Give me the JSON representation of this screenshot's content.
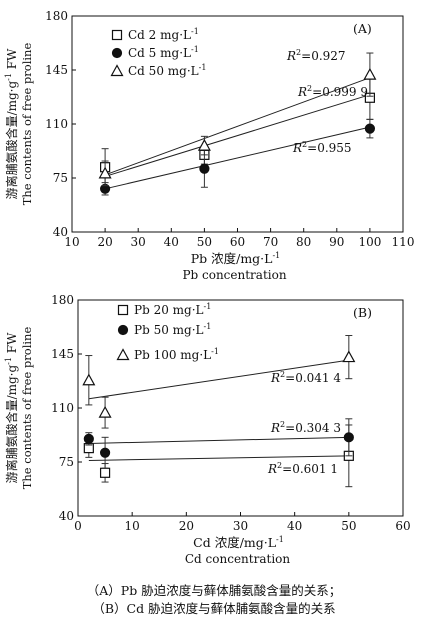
{
  "chart_data": [
    {
      "type": "scatter",
      "panel_label": "(A)",
      "xlabel_cn": "Pb 浓度/mg·L",
      "xlabel_sup": "-1",
      "xlabel_en": "Pb concentration",
      "ylabel_cn": "游离脯氨酸含量/mg·g",
      "ylabel_sup": "-1",
      "ylabel_tail": " FW",
      "ylabel_en": "The contents of free proline",
      "xlim": [
        10,
        110
      ],
      "ylim": [
        40,
        180
      ],
      "xticks": [
        10,
        20,
        30,
        40,
        50,
        60,
        70,
        80,
        90,
        100,
        110
      ],
      "yticks": [
        40,
        75,
        110,
        145,
        180
      ],
      "legend_position": "top-left",
      "series": [
        {
          "name": "Cd 2 mg·L",
          "name_sup": "-1",
          "marker": "square",
          "x": [
            20,
            50,
            100
          ],
          "y": [
            82,
            90,
            127
          ],
          "err": [
            12,
            6,
            14
          ],
          "fit": [
            76,
            129
          ],
          "r2_label": "R",
          "r2_value": "=0.927"
        },
        {
          "name": "Cd 5 mg·L",
          "name_sup": "-1",
          "marker": "circle",
          "x": [
            20,
            50,
            100
          ],
          "y": [
            68,
            81,
            107
          ],
          "err": [
            4,
            12,
            6
          ],
          "fit": [
            68,
            108
          ],
          "r2_label": "R",
          "r2_value": "=0.999 9"
        },
        {
          "name": "Cd 50 mg·L",
          "name_sup": "-1",
          "marker": "triangle",
          "x": [
            20,
            50,
            100
          ],
          "y": [
            78,
            96,
            142
          ],
          "err": [
            8,
            6,
            14
          ],
          "fit": [
            77,
            140
          ],
          "r2_label": "R",
          "r2_value": "=0.955"
        }
      ]
    },
    {
      "type": "scatter",
      "panel_label": "(B)",
      "xlabel_cn": "Cd 浓度/mg·L",
      "xlabel_sup": "-1",
      "xlabel_en": "Cd concentration",
      "ylabel_cn": "游离脯氨酸含量/mg·g",
      "ylabel_sup": "-1",
      "ylabel_tail": " FW",
      "ylabel_en": "The contents of free proline",
      "xlim": [
        0,
        60
      ],
      "ylim": [
        40,
        180
      ],
      "xticks": [
        0,
        10,
        20,
        30,
        40,
        50,
        60
      ],
      "yticks": [
        40,
        75,
        110,
        145,
        180
      ],
      "legend_position": "top-left",
      "series": [
        {
          "name": "Pb 20 mg·L",
          "name_sup": "-1",
          "marker": "square",
          "x": [
            2,
            5,
            50
          ],
          "y": [
            84,
            68,
            79
          ],
          "err": [
            6,
            6,
            20
          ],
          "fit": [
            76,
            79
          ],
          "r2_label": "R",
          "r2_value": "=0.041 4"
        },
        {
          "name": "Pb 50 mg·L",
          "name_sup": "-1",
          "marker": "circle",
          "x": [
            2,
            5,
            50
          ],
          "y": [
            90,
            81,
            91
          ],
          "err": [
            4,
            10,
            12
          ],
          "fit": [
            87,
            91
          ],
          "r2_label": "R",
          "r2_value": "=0.304 3"
        },
        {
          "name": "Pb 100 mg·L",
          "name_sup": "-1",
          "marker": "triangle",
          "x": [
            2,
            5,
            50
          ],
          "y": [
            128,
            107,
            143
          ],
          "err": [
            16,
            10,
            14
          ],
          "fit": [
            116,
            141
          ],
          "r2_label": "R",
          "r2_value": "=0.601 1"
        }
      ]
    }
  ],
  "caption": {
    "line1": "（A）Pb 胁迫浓度与藓体脯氨酸含量的关系；",
    "line2": "（B）Cd 胁迫浓度与藓体脯氨酸含量的关系"
  }
}
